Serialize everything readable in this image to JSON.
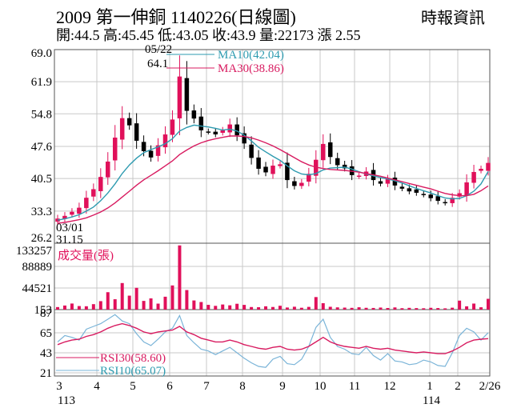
{
  "header": {
    "title": "2009  第一伸銅 1140226(日線圖)",
    "ohlc": "開:44.5 高:45.45 低:43.05 收:43.9 量:22173 漲 2.55",
    "source": "時報資訊"
  },
  "colors": {
    "up": "#e0105a",
    "down": "#000000",
    "ma10": "#2e9bb0",
    "ma30": "#d81b60",
    "rsi30": "#d81b60",
    "rsi10": "#7ab4d8",
    "volume": "#e0105a",
    "grid": "#c8c8c8"
  },
  "chart_data": [
    {
      "type": "candlestick",
      "panel": "price",
      "ylim": [
        26.2,
        69.0
      ],
      "yticks": [
        "69.0",
        "61.9",
        "54.8",
        "47.6",
        "40.5",
        "33.3",
        "26.2"
      ],
      "ytick_values": [
        69.0,
        61.9,
        54.8,
        47.6,
        40.5,
        33.3,
        26.2
      ],
      "x_month_labels": [
        "3",
        "4",
        "5",
        "6",
        "7",
        "8",
        "9",
        "10",
        "11",
        "12",
        "1",
        "2",
        "2/26"
      ],
      "x_year_labels": [
        "113",
        "114"
      ],
      "grid": true,
      "legend": [
        {
          "label": "MA10(42.04)",
          "color": "#2e9bb0"
        },
        {
          "label": "MA30(38.86)",
          "color": "#d81b60"
        }
      ],
      "annotations": [
        {
          "date": "05/22",
          "value": "64.1"
        },
        {
          "date": "03/01",
          "value": "31.15"
        }
      ],
      "series": [
        {
          "name": "close",
          "values": [
            31.6,
            32.2,
            33.1,
            34.0,
            36.2,
            38.1,
            40.8,
            44.2,
            49.5,
            53.8,
            52.3,
            48.9,
            46.6,
            45.2,
            47.8,
            50.2,
            53.5,
            63.0,
            55.5,
            53.8,
            51.2,
            50.8,
            50.3,
            51.1,
            52.4,
            50.1,
            48.3,
            45.1,
            42.7,
            41.9,
            43.3,
            43.6,
            40.2,
            38.9,
            39.5,
            41.5,
            44.6,
            48.1,
            45.3,
            43.5,
            42.8,
            41.3,
            41.1,
            42.0,
            40.2,
            39.4,
            40.3,
            39.0,
            38.3,
            37.7,
            37.4,
            36.9,
            36.2,
            35.6,
            35.1,
            36.2,
            37.2,
            39.6,
            41.9,
            42.6,
            43.9
          ]
        },
        {
          "name": "MA10",
          "values": [
            31.3,
            31.6,
            32.0,
            32.5,
            33.3,
            34.2,
            35.6,
            37.3,
            39.3,
            41.6,
            43.5,
            45.0,
            46.2,
            46.9,
            47.5,
            48.2,
            49.3,
            51.0,
            51.8,
            52.3,
            52.1,
            51.9,
            51.6,
            51.2,
            51.4,
            51.0,
            50.1,
            48.8,
            47.4,
            46.4,
            45.4,
            44.5,
            43.3,
            42.2,
            41.5,
            41.3,
            41.6,
            42.4,
            42.8,
            42.9,
            43.0,
            42.6,
            42.0,
            41.5,
            41.1,
            40.7,
            40.4,
            40.0,
            39.5,
            38.9,
            38.3,
            37.8,
            37.3,
            36.7,
            36.2,
            36.0,
            36.1,
            36.7,
            37.7,
            39.3,
            42.04
          ]
        },
        {
          "name": "MA30",
          "values": [
            30.6,
            30.8,
            31.1,
            31.4,
            31.8,
            32.4,
            33.1,
            34.0,
            35.1,
            36.4,
            37.7,
            39.0,
            40.2,
            41.2,
            42.2,
            43.3,
            44.4,
            45.8,
            46.8,
            47.7,
            48.4,
            48.9,
            49.3,
            49.6,
            49.9,
            49.9,
            49.8,
            49.5,
            49.0,
            48.4,
            47.7,
            46.9,
            46.0,
            45.1,
            44.2,
            43.5,
            43.0,
            42.7,
            42.5,
            42.4,
            42.3,
            42.1,
            41.9,
            41.6,
            41.3,
            41.0,
            40.6,
            40.2,
            39.8,
            39.4,
            39.0,
            38.6,
            38.2,
            37.7,
            37.2,
            36.9,
            36.7,
            36.7,
            37.0,
            37.8,
            38.86
          ]
        }
      ]
    },
    {
      "type": "bar",
      "panel": "volume",
      "label": "成交量(張)",
      "ylim": [
        0,
        133257
      ],
      "yticks": [
        "133257",
        "88889",
        "44521",
        "153"
      ],
      "ytick_values": [
        133257,
        88889,
        44521,
        153
      ],
      "values": [
        5200,
        8400,
        12500,
        7300,
        6900,
        11200,
        17400,
        35800,
        21300,
        54600,
        28700,
        44800,
        17900,
        23100,
        12300,
        26500,
        49700,
        132000,
        40200,
        18800,
        15600,
        9800,
        7700,
        10500,
        8800,
        12000,
        9700,
        5300,
        4900,
        6800,
        5400,
        7900,
        4300,
        5900,
        3800,
        5600,
        25800,
        13200,
        5800,
        4600,
        4100,
        3600,
        4800,
        3700,
        3400,
        4200,
        3300,
        4500,
        2900,
        3600,
        3100,
        2800,
        3700,
        3200,
        2600,
        3900,
        18500,
        6800,
        12400,
        4800,
        22173
      ]
    },
    {
      "type": "line",
      "panel": "rsi",
      "ylim": [
        21,
        87
      ],
      "yticks": [
        "87",
        "65",
        "43",
        "21"
      ],
      "ytick_values": [
        87,
        65,
        43,
        21
      ],
      "legend": [
        {
          "label": "RSI30(58.60)",
          "color": "#d81b60"
        },
        {
          "label": "RSI10(65.07)",
          "color": "#7ab4d8"
        }
      ],
      "series": [
        {
          "name": "RSI30",
          "values": [
            52,
            55,
            57,
            58,
            61,
            63,
            66,
            70,
            73,
            75,
            73,
            70,
            66,
            64,
            66,
            67,
            68,
            72,
            66,
            63,
            59,
            57,
            55,
            55,
            57,
            55,
            52,
            50,
            48,
            47,
            49,
            50,
            47,
            46,
            47,
            50,
            55,
            60,
            55,
            52,
            50,
            49,
            48,
            50,
            48,
            47,
            48,
            46,
            45,
            44,
            43,
            44,
            43,
            42,
            42,
            45,
            49,
            54,
            57,
            58,
            58.6
          ]
        },
        {
          "name": "RSI10",
          "values": [
            55,
            62,
            60,
            57,
            69,
            72,
            75,
            80,
            85,
            78,
            75,
            64,
            55,
            51,
            58,
            66,
            70,
            84,
            62,
            54,
            47,
            45,
            41,
            45,
            49,
            43,
            37,
            32,
            28,
            27,
            36,
            39,
            31,
            30,
            36,
            50,
            71,
            80,
            60,
            50,
            47,
            42,
            41,
            49,
            40,
            35,
            42,
            34,
            33,
            30,
            31,
            35,
            33,
            29,
            28,
            43,
            62,
            70,
            66,
            57,
            65.07
          ]
        }
      ]
    }
  ]
}
